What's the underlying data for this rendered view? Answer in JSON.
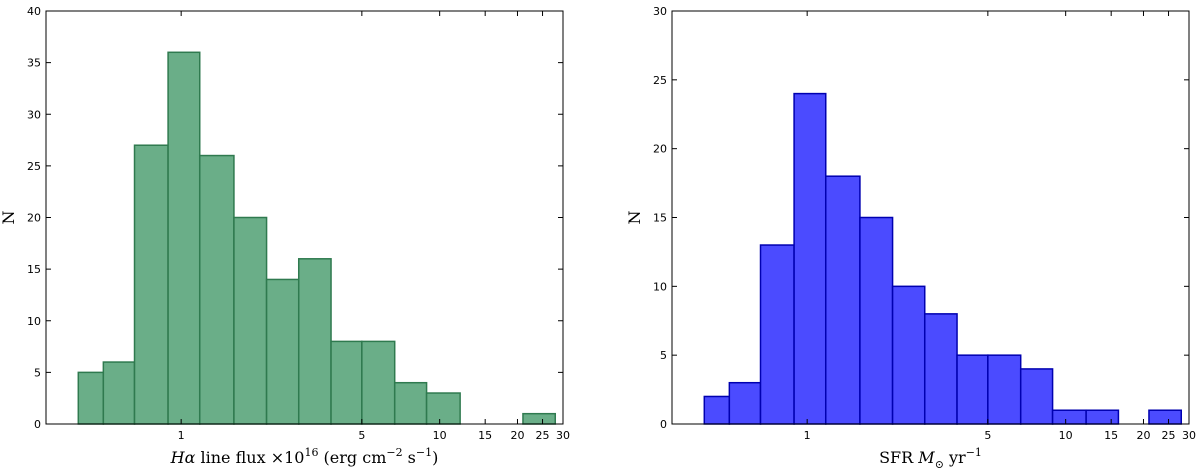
{
  "chart_data": [
    {
      "type": "bar",
      "panel": "left",
      "xscale": "log",
      "xlim": [
        0.3,
        30
      ],
      "ylim": [
        0,
        40
      ],
      "ylabel": "N",
      "xlabel": {
        "prefix": "H",
        "greek": "α",
        "middle": " line flux ×10",
        "exp1": "16",
        "unit1": " (erg cm",
        "exp2": "−2",
        "unit2": " s",
        "exp3": "−1",
        "suffix": ")"
      },
      "color": "#6aae88",
      "edge_color": "#2f7a4f",
      "bin_edges": [
        0.4,
        0.5,
        0.66,
        0.89,
        1.18,
        1.6,
        2.14,
        2.85,
        3.8,
        5.0,
        6.7,
        8.9,
        12.0,
        16.0,
        21.0,
        28.0
      ],
      "values": [
        5,
        6,
        27,
        36,
        26,
        20,
        14,
        16,
        8,
        8,
        4,
        3,
        0,
        0,
        1
      ],
      "xticks": [
        {
          "v": 1,
          "l": "1"
        },
        {
          "v": 5,
          "l": "5"
        },
        {
          "v": 10,
          "l": "10"
        },
        {
          "v": 15,
          "l": "15"
        },
        {
          "v": 20,
          "l": "20"
        },
        {
          "v": 25,
          "l": "25"
        },
        {
          "v": 30,
          "l": "30"
        }
      ],
      "yticks": [
        0,
        5,
        10,
        15,
        20,
        25,
        30,
        35,
        40
      ]
    },
    {
      "type": "bar",
      "panel": "right",
      "xscale": "log",
      "xlim": [
        0.3,
        30
      ],
      "ylim": [
        0,
        30
      ],
      "ylabel": "N",
      "xlabel": {
        "prefix": "SFR ",
        "italic": "M",
        "sub": "⊙",
        "unit": " yr",
        "exp": "−1"
      },
      "color": "#4b4bff",
      "edge_color": "#0000b0",
      "bin_edges": [
        0.4,
        0.5,
        0.66,
        0.89,
        1.18,
        1.6,
        2.14,
        2.85,
        3.8,
        5.0,
        6.7,
        8.9,
        12.0,
        16.0,
        21.0,
        28.0
      ],
      "values": [
        2,
        3,
        13,
        24,
        18,
        15,
        10,
        8,
        5,
        5,
        4,
        1,
        1,
        0,
        1
      ],
      "xticks": [
        {
          "v": 1,
          "l": "1"
        },
        {
          "v": 5,
          "l": "5"
        },
        {
          "v": 10,
          "l": "10"
        },
        {
          "v": 15,
          "l": "15"
        },
        {
          "v": 20,
          "l": "20"
        },
        {
          "v": 25,
          "l": "25"
        },
        {
          "v": 30,
          "l": "30"
        }
      ],
      "yticks": [
        0,
        5,
        10,
        15,
        20,
        25,
        30
      ]
    }
  ]
}
